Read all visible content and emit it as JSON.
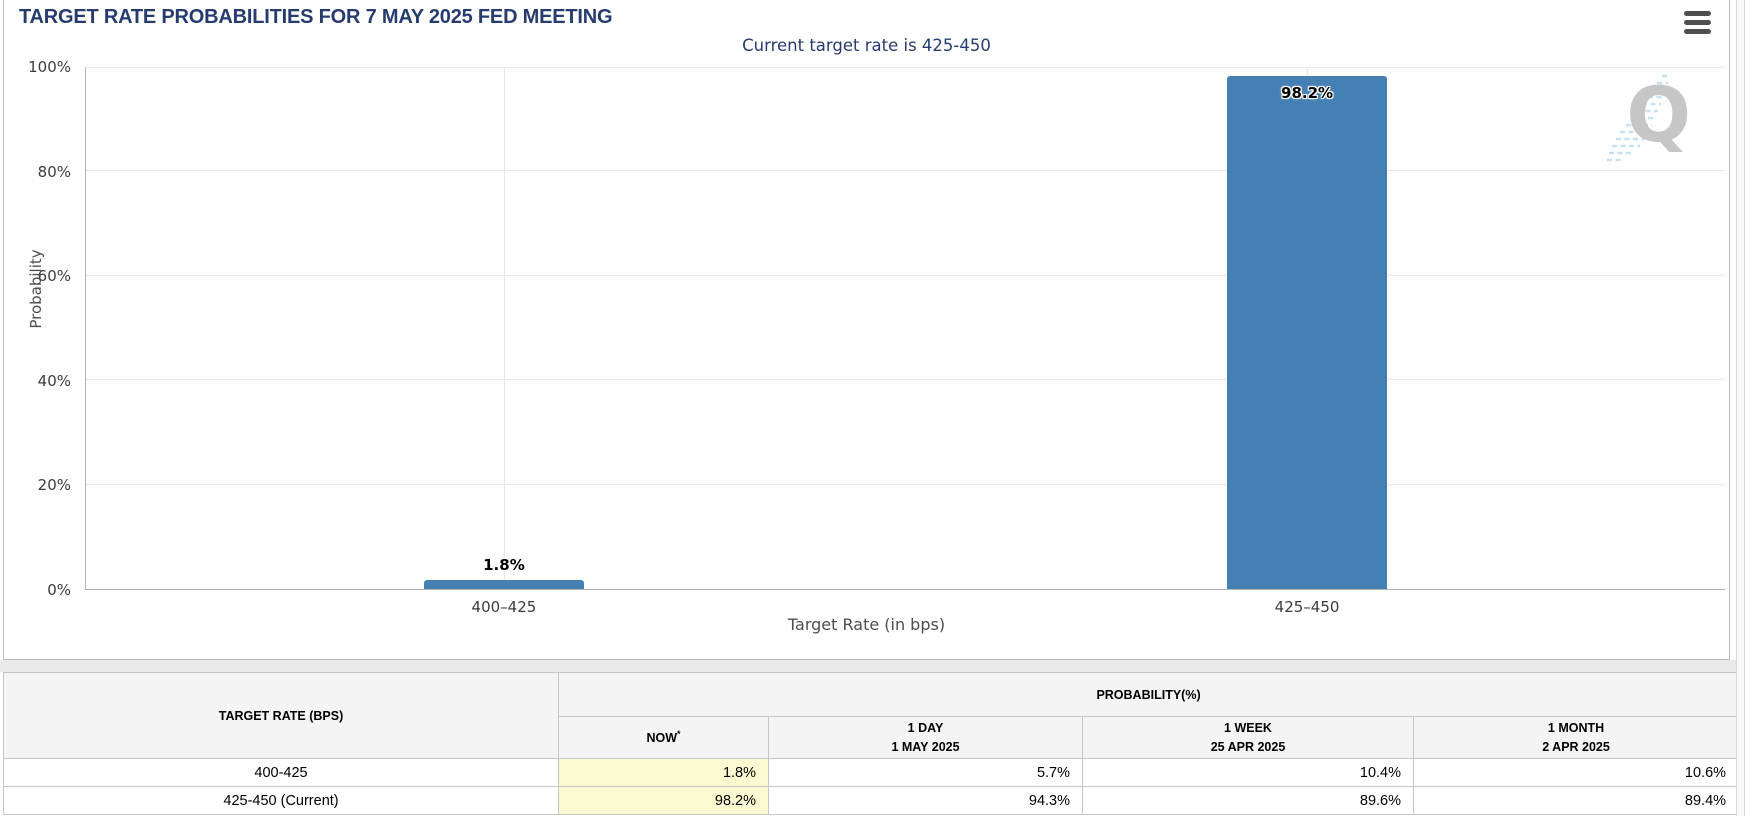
{
  "header": {
    "title": "TARGET RATE PROBABILITIES FOR 7 MAY 2025 FED MEETING"
  },
  "chart_data": {
    "type": "bar",
    "title": "TARGET RATE PROBABILITIES FOR 7 MAY 2025 FED MEETING",
    "subtitle": "Current target rate is 425-450",
    "categories": [
      "400–425",
      "425–450"
    ],
    "values": [
      1.8,
      98.2
    ],
    "value_labels": [
      "1.8%",
      "98.2%"
    ],
    "xlabel": "Target Rate (in bps)",
    "ylabel": "Probability",
    "ylim": [
      0,
      100
    ],
    "yticks": [
      "0%",
      "20%",
      "40%",
      "60%",
      "80%",
      "100%"
    ],
    "bar_color": "#4580b4",
    "grid": true,
    "legend": "none",
    "watermark_letter": "Q"
  },
  "table": {
    "rate_header": "TARGET RATE (BPS)",
    "group_header": "PROBABILITY(%)",
    "columns": [
      {
        "label": "NOW",
        "sup": "*",
        "sub": ""
      },
      {
        "label": "1 DAY",
        "sub": "1 MAY 2025"
      },
      {
        "label": "1 WEEK",
        "sub": "25 APR 2025"
      },
      {
        "label": "1 MONTH",
        "sub": "2 APR 2025"
      }
    ],
    "rows": [
      {
        "rate": "400-425",
        "now": "1.8%",
        "day": "5.7%",
        "week": "10.4%",
        "month": "10.6%"
      },
      {
        "rate": "425-450 (Current)",
        "now": "98.2%",
        "day": "94.3%",
        "week": "89.6%",
        "month": "89.4%"
      }
    ]
  }
}
